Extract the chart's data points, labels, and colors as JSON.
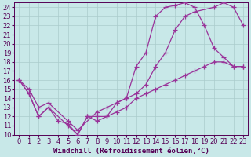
{
  "background_color": "#c8e8e8",
  "grid_color": "#aacccc",
  "line_color": "#993399",
  "marker": "+",
  "markersize": 4,
  "linewidth": 0.9,
  "xlim": [
    -0.5,
    23.5
  ],
  "ylim": [
    10,
    24.5
  ],
  "xticks": [
    0,
    1,
    2,
    3,
    4,
    5,
    6,
    7,
    8,
    9,
    10,
    11,
    12,
    13,
    14,
    15,
    16,
    17,
    18,
    19,
    20,
    21,
    22,
    23
  ],
  "yticks": [
    10,
    11,
    12,
    13,
    14,
    15,
    16,
    17,
    18,
    19,
    20,
    21,
    22,
    23,
    24
  ],
  "xlabel": "Windchill (Refroidissement éolien,°C)",
  "line1_x": [
    0,
    1,
    2,
    3,
    4,
    5,
    6,
    7,
    8,
    9,
    10,
    11,
    12,
    13,
    14,
    15,
    16,
    17,
    18,
    19,
    20,
    21,
    22,
    23
  ],
  "line1_y": [
    16,
    14.5,
    12.0,
    13.0,
    11.5,
    11.2,
    10.0,
    12.0,
    11.5,
    12.0,
    12.5,
    13.0,
    14.0,
    14.5,
    15.0,
    15.5,
    16.0,
    16.5,
    17.0,
    17.5,
    18.0,
    18.0,
    17.5,
    17.5
  ],
  "line2_x": [
    0,
    1,
    2,
    3,
    5,
    6,
    8,
    9,
    10,
    11,
    12,
    13,
    14,
    15,
    16,
    17,
    18,
    20,
    21,
    22,
    23
  ],
  "line2_y": [
    16,
    15.0,
    13.0,
    13.5,
    11.5,
    10.5,
    12.5,
    13.0,
    13.5,
    14.0,
    14.5,
    15.5,
    17.5,
    19.0,
    21.5,
    23.0,
    23.5,
    24.0,
    24.5,
    24.0,
    22.0
  ],
  "line3_x": [
    0,
    1,
    2,
    3,
    5,
    6,
    7,
    8,
    9,
    10,
    11,
    12,
    13,
    14,
    15,
    16,
    17,
    18,
    19,
    20,
    21,
    22,
    23
  ],
  "line3_y": [
    16,
    14.5,
    12.0,
    13.0,
    11.0,
    10.0,
    12.0,
    12.0,
    12.0,
    13.5,
    14.0,
    17.5,
    19.0,
    23.0,
    24.0,
    24.2,
    24.5,
    24.0,
    22.0,
    19.5,
    18.5,
    17.5,
    17.5
  ],
  "tick_fontsize": 6,
  "label_fontsize": 6.5
}
